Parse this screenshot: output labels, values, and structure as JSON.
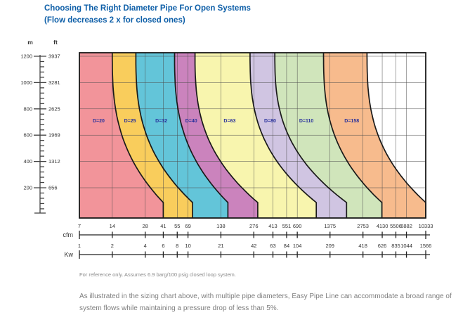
{
  "title": {
    "line1": "Choosing The Right Diameter Pipe For Open Systems",
    "line2": "(Flow decreases 2 x for closed ones)",
    "color": "#0e5fa8"
  },
  "vertical_axis": {
    "m_header": "m",
    "ft_header": "ft",
    "ticks": [
      {
        "m": 1200,
        "ft": 3937
      },
      {
        "m": 1000,
        "ft": 3281
      },
      {
        "m": 800,
        "ft": 2625
      },
      {
        "m": 600,
        "ft": 1969
      },
      {
        "m": 400,
        "ft": 1312
      },
      {
        "m": 200,
        "ft": 656
      }
    ]
  },
  "x_axes": {
    "cfm": {
      "label": "cfm",
      "ticks": [
        7,
        14,
        28,
        41,
        55,
        69,
        138,
        276,
        413,
        551,
        690,
        1375,
        2753,
        4130,
        5506,
        6882,
        10333
      ]
    },
    "kw": {
      "label": "Kw",
      "ticks": [
        1,
        2,
        4,
        6,
        8,
        10,
        21,
        42,
        63,
        84,
        104,
        209,
        418,
        626,
        835,
        1044,
        1566
      ]
    }
  },
  "footnote": "For reference only. Assumes 6.9 barg/100 psig closed loop system.",
  "paragraph": "As illustrated in the sizing chart above, with multiple pipe diameters, Easy Pipe Line can accommodate a broad range of system flows while maintaining a pressure drop of less than 5%.",
  "style": {
    "grid_color": "#4d4d4d",
    "curve_color": "#1a1a1a",
    "band_label_color": "#28309c",
    "axis_text_color": "#333333",
    "ruler_color": "#444444"
  },
  "chart_data": {
    "type": "area",
    "title": "Choosing The Right Diameter Pipe For Open Systems (Flow decreases 2 x for closed ones)",
    "x_axis": {
      "scale": "log",
      "units": [
        "cfm",
        "Kw"
      ],
      "cfm_ticks": [
        7,
        14,
        28,
        41,
        55,
        69,
        138,
        276,
        413,
        551,
        690,
        1375,
        2753,
        4130,
        5506,
        6882,
        10333
      ],
      "kw_ticks": [
        1,
        2,
        4,
        6,
        8,
        10,
        21,
        42,
        63,
        84,
        104,
        209,
        418,
        626,
        835,
        1044,
        1566
      ],
      "range_cfm": [
        7,
        10333
      ]
    },
    "y_axis": {
      "units": [
        "m",
        "ft"
      ],
      "m_ticks": [
        200,
        400,
        600,
        800,
        1000,
        1200
      ],
      "ft_ticks": [
        656,
        1312,
        1969,
        2625,
        3281,
        3937
      ],
      "range_m": [
        0,
        1225
      ]
    },
    "grid": "on",
    "bands": [
      {
        "label": "D=20",
        "diameter_mm": 20,
        "color": "#F2949A",
        "flow_cfm_at_top_altitude": 14,
        "flow_cfm_at_sea_level": 41
      },
      {
        "label": "D=25",
        "diameter_mm": 25,
        "color": "#F9CD5C",
        "flow_cfm_at_top_altitude": 23,
        "flow_cfm_at_sea_level": 76
      },
      {
        "label": "D=32",
        "diameter_mm": 32,
        "color": "#63C5D9",
        "flow_cfm_at_top_altitude": 52,
        "flow_cfm_at_sea_level": 160
      },
      {
        "label": "D=40",
        "diameter_mm": 40,
        "color": "#CB83BD",
        "flow_cfm_at_top_altitude": 80,
        "flow_cfm_at_sea_level": 300
      },
      {
        "label": "D=63",
        "diameter_mm": 63,
        "color": "#F8F5AE",
        "flow_cfm_at_top_altitude": 255,
        "flow_cfm_at_sea_level": 1030
      },
      {
        "label": "D=80",
        "diameter_mm": 80,
        "color": "#D0C5E2",
        "flow_cfm_at_top_altitude": 430,
        "flow_cfm_at_sea_level": 1950
      },
      {
        "label": "D=110",
        "diameter_mm": 110,
        "color": "#D0E5BB",
        "flow_cfm_at_top_altitude": 1200,
        "flow_cfm_at_sea_level": 4100
      },
      {
        "label": "D=158",
        "diameter_mm": 158,
        "color": "#F7BB8D",
        "flow_cfm_at_top_altitude": 3000,
        "flow_cfm_at_sea_level": 10333
      }
    ],
    "annotations": [
      "For reference only. Assumes 6.9 barg/100 psig closed loop system."
    ]
  }
}
